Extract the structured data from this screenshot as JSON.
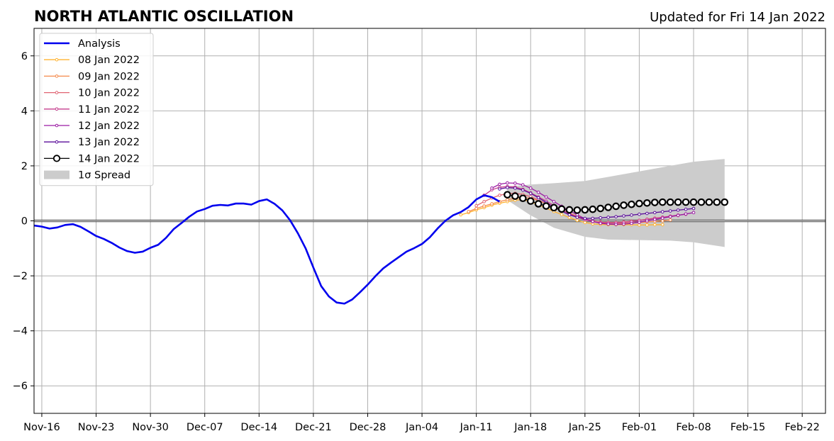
{
  "chart_data": {
    "type": "line",
    "title": "NORTH ATLANTIC OSCILLATION",
    "subtitle": "Updated for Fri 14 Jan 2022",
    "xlabel": "",
    "ylabel": "",
    "xlim": [
      "2021-11-15",
      "2022-02-25"
    ],
    "ylim": [
      -7,
      7
    ],
    "yticks": [
      -6,
      -4,
      -2,
      0,
      2,
      4,
      6
    ],
    "yticklabels": [
      "−6",
      "−4",
      "−2",
      "0",
      "2",
      "4",
      "6"
    ],
    "xticks": [
      "2021-11-16",
      "2021-11-23",
      "2021-11-30",
      "2021-12-07",
      "2021-12-14",
      "2021-12-21",
      "2021-12-28",
      "2022-01-04",
      "2022-01-11",
      "2022-01-18",
      "2022-01-25",
      "2022-02-01",
      "2022-02-08",
      "2022-02-15",
      "2022-02-22"
    ],
    "xticklabels": [
      "Nov-16",
      "Nov-23",
      "Nov-30",
      "Dec-07",
      "Dec-14",
      "Dec-21",
      "Dec-28",
      "Jan-04",
      "Jan-11",
      "Jan-18",
      "Jan-25",
      "Feb-01",
      "Feb-08",
      "Feb-15",
      "Feb-22"
    ],
    "grid": true,
    "legend_position": "top-left",
    "analysis": {
      "name": "Analysis",
      "color": "#0000ee",
      "start": "2021-11-15",
      "values": [
        -0.17,
        -0.21,
        -0.28,
        -0.24,
        -0.15,
        -0.12,
        -0.22,
        -0.38,
        -0.55,
        -0.66,
        -0.8,
        -0.97,
        -1.1,
        -1.16,
        -1.12,
        -0.98,
        -0.87,
        -0.62,
        -0.3,
        -0.08,
        0.15,
        0.34,
        0.43,
        0.55,
        0.58,
        0.56,
        0.63,
        0.63,
        0.59,
        0.72,
        0.78,
        0.62,
        0.38,
        0.02,
        -0.45,
        -1.0,
        -1.7,
        -2.37,
        -2.75,
        -2.97,
        -3.01,
        -2.86,
        -2.6,
        -2.32,
        -2.01,
        -1.73,
        -1.52,
        -1.32,
        -1.12,
        -0.99,
        -0.84,
        -0.6,
        -0.28,
        0.0,
        0.2,
        0.32,
        0.5,
        0.78,
        0.93,
        0.86,
        0.7
      ]
    },
    "forecasts": [
      {
        "name": "08 Jan 2022",
        "color": "#ffb330",
        "start": "2022-01-09",
        "values": [
          0.22,
          0.3,
          0.4,
          0.48,
          0.57,
          0.64,
          0.7,
          0.75,
          0.77,
          0.7,
          0.58,
          0.46,
          0.34,
          0.23,
          0.12,
          0.02,
          -0.06,
          -0.11,
          -0.13,
          -0.14,
          -0.14,
          -0.14,
          -0.14,
          -0.15,
          -0.15,
          -0.14,
          -0.14
        ]
      },
      {
        "name": "09 Jan 2022",
        "color": "#f5894b",
        "start": "2022-01-10",
        "values": [
          0.34,
          0.45,
          0.54,
          0.62,
          0.7,
          0.77,
          0.82,
          0.84,
          0.82,
          0.74,
          0.63,
          0.52,
          0.4,
          0.28,
          0.17,
          0.07,
          0.0,
          -0.05,
          -0.08,
          -0.09,
          -0.09,
          -0.08,
          -0.06,
          -0.04,
          -0.02,
          0.0,
          0.03
        ]
      },
      {
        "name": "10 Jan 2022",
        "color": "#e06372",
        "start": "2022-01-11",
        "values": [
          0.55,
          0.7,
          0.83,
          0.93,
          0.99,
          1.0,
          0.96,
          0.88,
          0.76,
          0.63,
          0.49,
          0.36,
          0.24,
          0.13,
          0.05,
          -0.01,
          -0.05,
          -0.06,
          -0.06,
          -0.04,
          -0.01,
          0.02,
          0.06,
          0.1,
          0.13,
          0.16,
          0.19
        ]
      },
      {
        "name": "11 Jan 2022",
        "color": "#c43c8c",
        "start": "2022-01-12",
        "values": [
          0.93,
          1.13,
          1.22,
          1.25,
          1.23,
          1.15,
          1.02,
          0.87,
          0.72,
          0.56,
          0.41,
          0.27,
          0.14,
          0.04,
          -0.03,
          -0.07,
          -0.08,
          -0.08,
          -0.06,
          -0.03,
          0.01,
          0.05,
          0.09,
          0.13,
          0.17,
          0.21,
          0.24
        ]
      },
      {
        "name": "12 Jan 2022",
        "color": "#9b1ba3",
        "start": "2022-01-13",
        "values": [
          1.19,
          1.33,
          1.38,
          1.37,
          1.31,
          1.19,
          1.04,
          0.87,
          0.7,
          0.53,
          0.37,
          0.22,
          0.08,
          -0.02,
          -0.09,
          -0.12,
          -0.13,
          -0.12,
          -0.09,
          -0.05,
          0.0,
          0.05,
          0.1,
          0.15,
          0.2,
          0.25,
          0.3
        ]
      },
      {
        "name": "13 Jan 2022",
        "color": "#5a0d9a",
        "start": "2022-01-14",
        "values": [
          1.16,
          1.21,
          1.19,
          1.12,
          1.0,
          0.84,
          0.67,
          0.5,
          0.35,
          0.22,
          0.13,
          0.09,
          0.09,
          0.11,
          0.13,
          0.15,
          0.18,
          0.21,
          0.24,
          0.27,
          0.3,
          0.33,
          0.36,
          0.39,
          0.42,
          0.45
        ]
      },
      {
        "name": "14 Jan 2022",
        "color": "#000000",
        "start": "2022-01-15",
        "values": [
          0.95,
          0.9,
          0.82,
          0.72,
          0.62,
          0.54,
          0.48,
          0.43,
          0.4,
          0.39,
          0.4,
          0.42,
          0.45,
          0.49,
          0.53,
          0.57,
          0.6,
          0.63,
          0.65,
          0.67,
          0.68,
          0.68,
          0.68,
          0.68,
          0.68,
          0.68,
          0.68,
          0.68,
          0.68
        ]
      }
    ],
    "spread": {
      "name": "1σ Spread",
      "color": "#cccccc",
      "dates": [
        "2022-01-15",
        "2022-01-18",
        "2022-01-21",
        "2022-01-25",
        "2022-01-28",
        "2022-02-01",
        "2022-02-05",
        "2022-02-08",
        "2022-02-12"
      ],
      "upper": [
        1.25,
        1.32,
        1.37,
        1.45,
        1.6,
        1.8,
        2.0,
        2.15,
        2.25
      ],
      "lower": [
        0.75,
        0.2,
        -0.25,
        -0.58,
        -0.68,
        -0.7,
        -0.72,
        -0.78,
        -0.95
      ]
    }
  }
}
